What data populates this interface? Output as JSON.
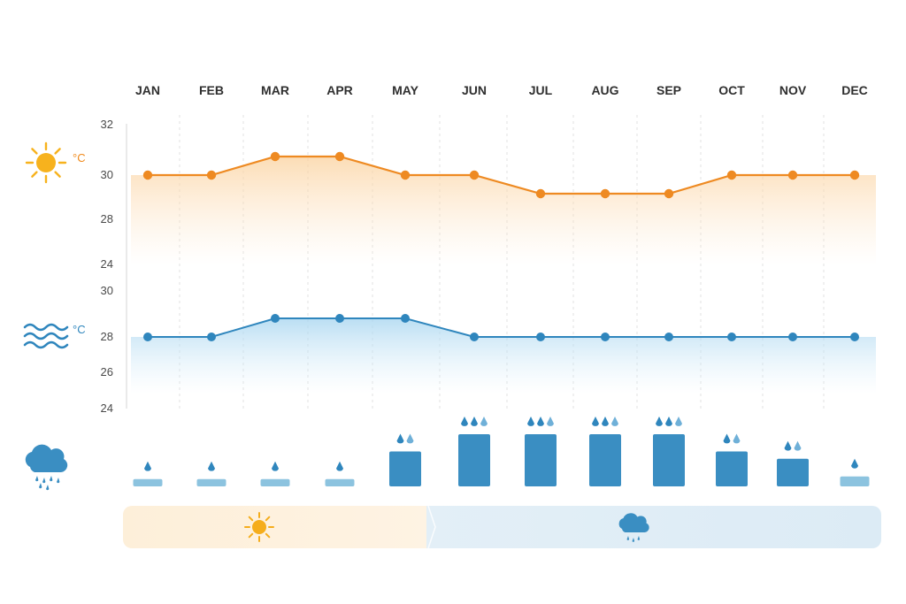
{
  "chart_data": {
    "type": "line",
    "categories": [
      "JAN",
      "FEB",
      "MAR",
      "APR",
      "MAY",
      "JUN",
      "JUL",
      "AUG",
      "SEP",
      "OCT",
      "NOV",
      "DEC"
    ],
    "air_temperature": {
      "unit": "°C",
      "yticks": [
        "32",
        "30",
        "28",
        "24"
      ],
      "values": [
        30,
        30,
        31,
        31,
        30,
        30,
        29,
        29,
        29,
        30,
        30,
        30
      ],
      "color": "#ee8a22"
    },
    "sea_temperature": {
      "unit": "°C",
      "yticks": [
        "30",
        "28",
        "26",
        "24"
      ],
      "values": [
        28,
        28,
        29,
        29,
        29,
        28,
        28,
        28,
        28,
        28,
        28,
        28
      ],
      "color": "#2f86bd"
    },
    "rainfall": {
      "level": [
        1,
        1,
        1,
        1,
        2,
        3,
        3,
        3,
        3,
        2,
        2,
        1
      ],
      "bar_fraction": [
        0.14,
        0.14,
        0.14,
        0.14,
        0.67,
        1.0,
        1.0,
        1.0,
        1.0,
        0.67,
        0.53,
        0.19
      ],
      "color_light": "#8cc3df",
      "color_dark": "#3a8ec2"
    },
    "seasons": [
      {
        "name": "dry",
        "icon": "sun-icon",
        "months_from": "JAN",
        "months_to": "APR",
        "color": "#fdf0dc"
      },
      {
        "name": "wet",
        "icon": "rain-cloud-icon",
        "months_from": "MAY",
        "months_to": "DEC",
        "color": "#dcebf5"
      }
    ]
  }
}
